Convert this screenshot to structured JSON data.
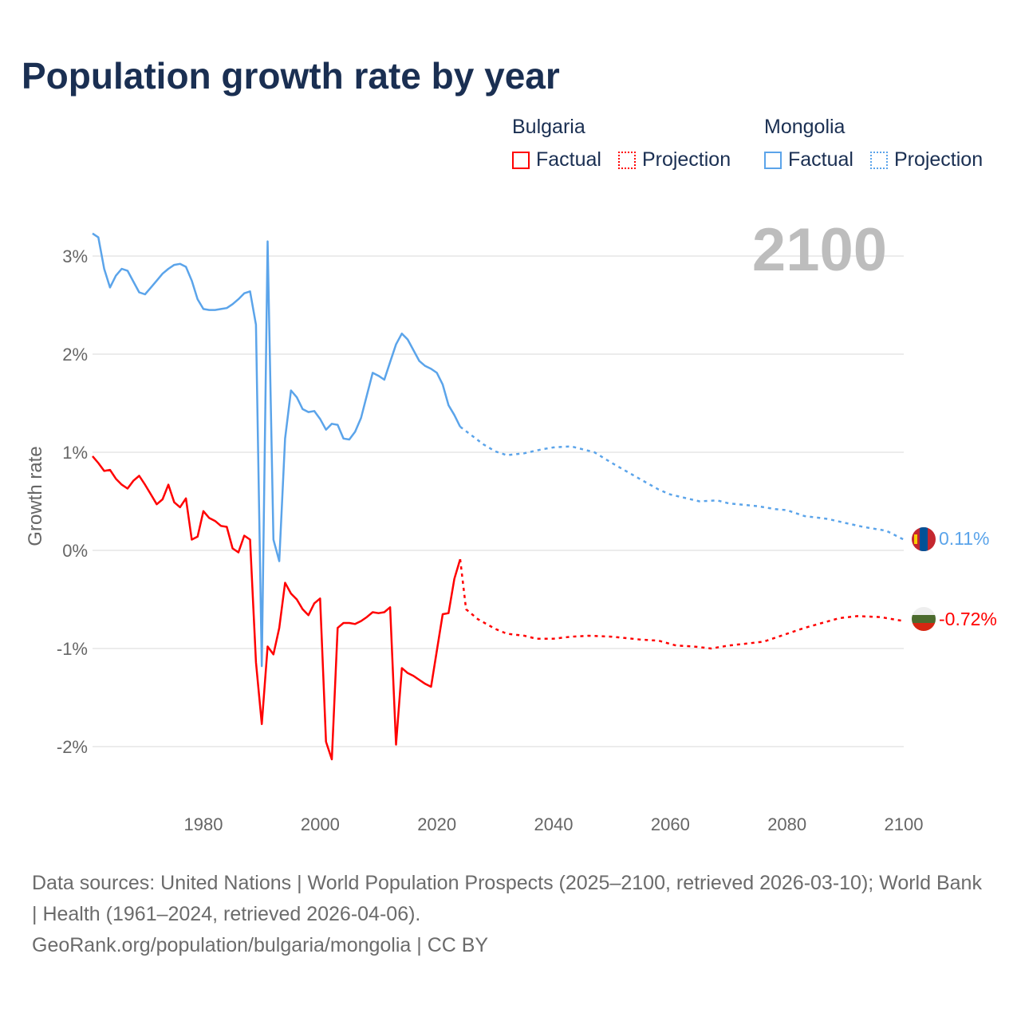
{
  "title": "Population growth rate by year",
  "year_label": "2100",
  "legend": {
    "groups": [
      {
        "name": "Bulgaria",
        "factual": "Factual",
        "projection": "Projection",
        "color": "#ff0000"
      },
      {
        "name": "Mongolia",
        "factual": "Factual",
        "projection": "Projection",
        "color": "#5ba4ea"
      }
    ]
  },
  "end_labels": {
    "mongolia": "0.11%",
    "bulgaria": "-0.72%"
  },
  "footer": {
    "sources": "Data sources: United Nations | World Population Prospects (2025–2100, retrieved 2026-03-10); World Bank | Health (1961–2024, retrieved 2026-04-06).",
    "link": "GeoRank.org/population/bulgaria/mongolia | CC BY"
  },
  "chart_data": {
    "type": "line",
    "title": "Population growth rate by year",
    "xlabel": "",
    "ylabel": "Growth rate",
    "xlim": [
      1961,
      2100
    ],
    "ylim": [
      -2.6,
      3.4
    ],
    "x_ticks": [
      1980,
      2000,
      2020,
      2040,
      2060,
      2080,
      2100
    ],
    "x_tick_labels": [
      "1980",
      "2000",
      "2020",
      "2040",
      "2060",
      "2080",
      "2100"
    ],
    "y_ticks": [
      3,
      2,
      1,
      0,
      -1,
      -2
    ],
    "y_tick_labels": [
      "3%",
      "2%",
      "1%",
      "0%",
      "-1%",
      "-2%"
    ],
    "grid": true,
    "legend_position": "top-right",
    "series": [
      {
        "name": "Bulgaria",
        "kind": "factual",
        "color": "#ff0000",
        "x": [
          1961,
          1962,
          1963,
          1964,
          1965,
          1966,
          1967,
          1968,
          1969,
          1970,
          1971,
          1972,
          1973,
          1974,
          1975,
          1976,
          1977,
          1978,
          1979,
          1980,
          1981,
          1982,
          1983,
          1984,
          1985,
          1986,
          1987,
          1988,
          1989,
          1990,
          1991,
          1992,
          1993,
          1994,
          1995,
          1996,
          1997,
          1998,
          1999,
          2000,
          2001,
          2002,
          2003,
          2004,
          2005,
          2006,
          2007,
          2008,
          2009,
          2010,
          2011,
          2012,
          2013,
          2014,
          2015,
          2016,
          2017,
          2018,
          2019,
          2020,
          2021,
          2022,
          2023,
          2024
        ],
        "y": [
          0.96,
          0.89,
          0.81,
          0.82,
          0.73,
          0.67,
          0.63,
          0.71,
          0.76,
          0.67,
          0.57,
          0.47,
          0.52,
          0.67,
          0.49,
          0.44,
          0.53,
          0.11,
          0.14,
          0.4,
          0.33,
          0.3,
          0.25,
          0.24,
          0.02,
          -0.02,
          0.15,
          0.11,
          -1.14,
          -1.77,
          -0.98,
          -1.06,
          -0.79,
          -0.33,
          -0.44,
          -0.5,
          -0.6,
          -0.66,
          -0.54,
          -0.49,
          -1.95,
          -2.13,
          -0.79,
          -0.74,
          -0.74,
          -0.75,
          -0.72,
          -0.68,
          -0.63,
          -0.64,
          -0.63,
          -0.58,
          -1.98,
          -1.2,
          -1.25,
          -1.28,
          -1.32,
          -1.36,
          -1.39,
          -1.02,
          -0.65,
          -0.64,
          -0.29,
          -0.09
        ]
      },
      {
        "name": "Bulgaria",
        "kind": "projection",
        "color": "#ff0000",
        "x": [
          2024,
          2025,
          2027,
          2030,
          2032,
          2035,
          2037,
          2040,
          2043,
          2046,
          2050,
          2055,
          2058,
          2061,
          2064,
          2067,
          2070,
          2073,
          2076,
          2080,
          2083,
          2086,
          2089,
          2092,
          2096,
          2100
        ],
        "y": [
          -0.09,
          -0.6,
          -0.7,
          -0.8,
          -0.85,
          -0.87,
          -0.9,
          -0.9,
          -0.88,
          -0.87,
          -0.88,
          -0.91,
          -0.92,
          -0.97,
          -0.98,
          -1.0,
          -0.97,
          -0.95,
          -0.93,
          -0.85,
          -0.79,
          -0.74,
          -0.69,
          -0.67,
          -0.68,
          -0.72
        ]
      },
      {
        "name": "Mongolia",
        "kind": "factual",
        "color": "#5ba4ea",
        "x": [
          1961,
          1962,
          1963,
          1964,
          1965,
          1966,
          1967,
          1968,
          1969,
          1970,
          1971,
          1972,
          1973,
          1974,
          1975,
          1976,
          1977,
          1978,
          1979,
          1980,
          1981,
          1982,
          1983,
          1984,
          1985,
          1986,
          1987,
          1988,
          1989,
          1990,
          1991,
          1992,
          1993,
          1994,
          1995,
          1996,
          1997,
          1998,
          1999,
          2000,
          2001,
          2002,
          2003,
          2004,
          2005,
          2006,
          2007,
          2008,
          2009,
          2010,
          2011,
          2012,
          2013,
          2014,
          2015,
          2016,
          2017,
          2018,
          2019,
          2020,
          2021,
          2022,
          2023,
          2024
        ],
        "y": [
          3.23,
          3.19,
          2.87,
          2.68,
          2.8,
          2.87,
          2.85,
          2.74,
          2.63,
          2.61,
          2.68,
          2.75,
          2.82,
          2.87,
          2.91,
          2.92,
          2.89,
          2.75,
          2.56,
          2.46,
          2.45,
          2.45,
          2.46,
          2.47,
          2.51,
          2.56,
          2.62,
          2.64,
          2.3,
          -1.18,
          3.15,
          0.11,
          -0.11,
          1.14,
          1.63,
          1.56,
          1.44,
          1.41,
          1.42,
          1.34,
          1.23,
          1.29,
          1.28,
          1.14,
          1.13,
          1.21,
          1.35,
          1.58,
          1.81,
          1.78,
          1.74,
          1.92,
          2.1,
          2.21,
          2.15,
          2.04,
          1.93,
          1.88,
          1.85,
          1.81,
          1.69,
          1.48,
          1.38,
          1.26
        ]
      },
      {
        "name": "Mongolia",
        "kind": "projection",
        "color": "#5ba4ea",
        "x": [
          2024,
          2026,
          2028,
          2030,
          2032,
          2035,
          2038,
          2040,
          2043,
          2045,
          2047,
          2050,
          2055,
          2058,
          2060,
          2065,
          2068,
          2070,
          2075,
          2078,
          2080,
          2083,
          2087,
          2090,
          2093,
          2097,
          2100
        ],
        "y": [
          1.26,
          1.17,
          1.08,
          1.01,
          0.97,
          0.99,
          1.03,
          1.05,
          1.06,
          1.03,
          1.0,
          0.89,
          0.72,
          0.62,
          0.57,
          0.5,
          0.51,
          0.48,
          0.45,
          0.42,
          0.41,
          0.35,
          0.32,
          0.28,
          0.24,
          0.2,
          0.11
        ]
      }
    ]
  }
}
